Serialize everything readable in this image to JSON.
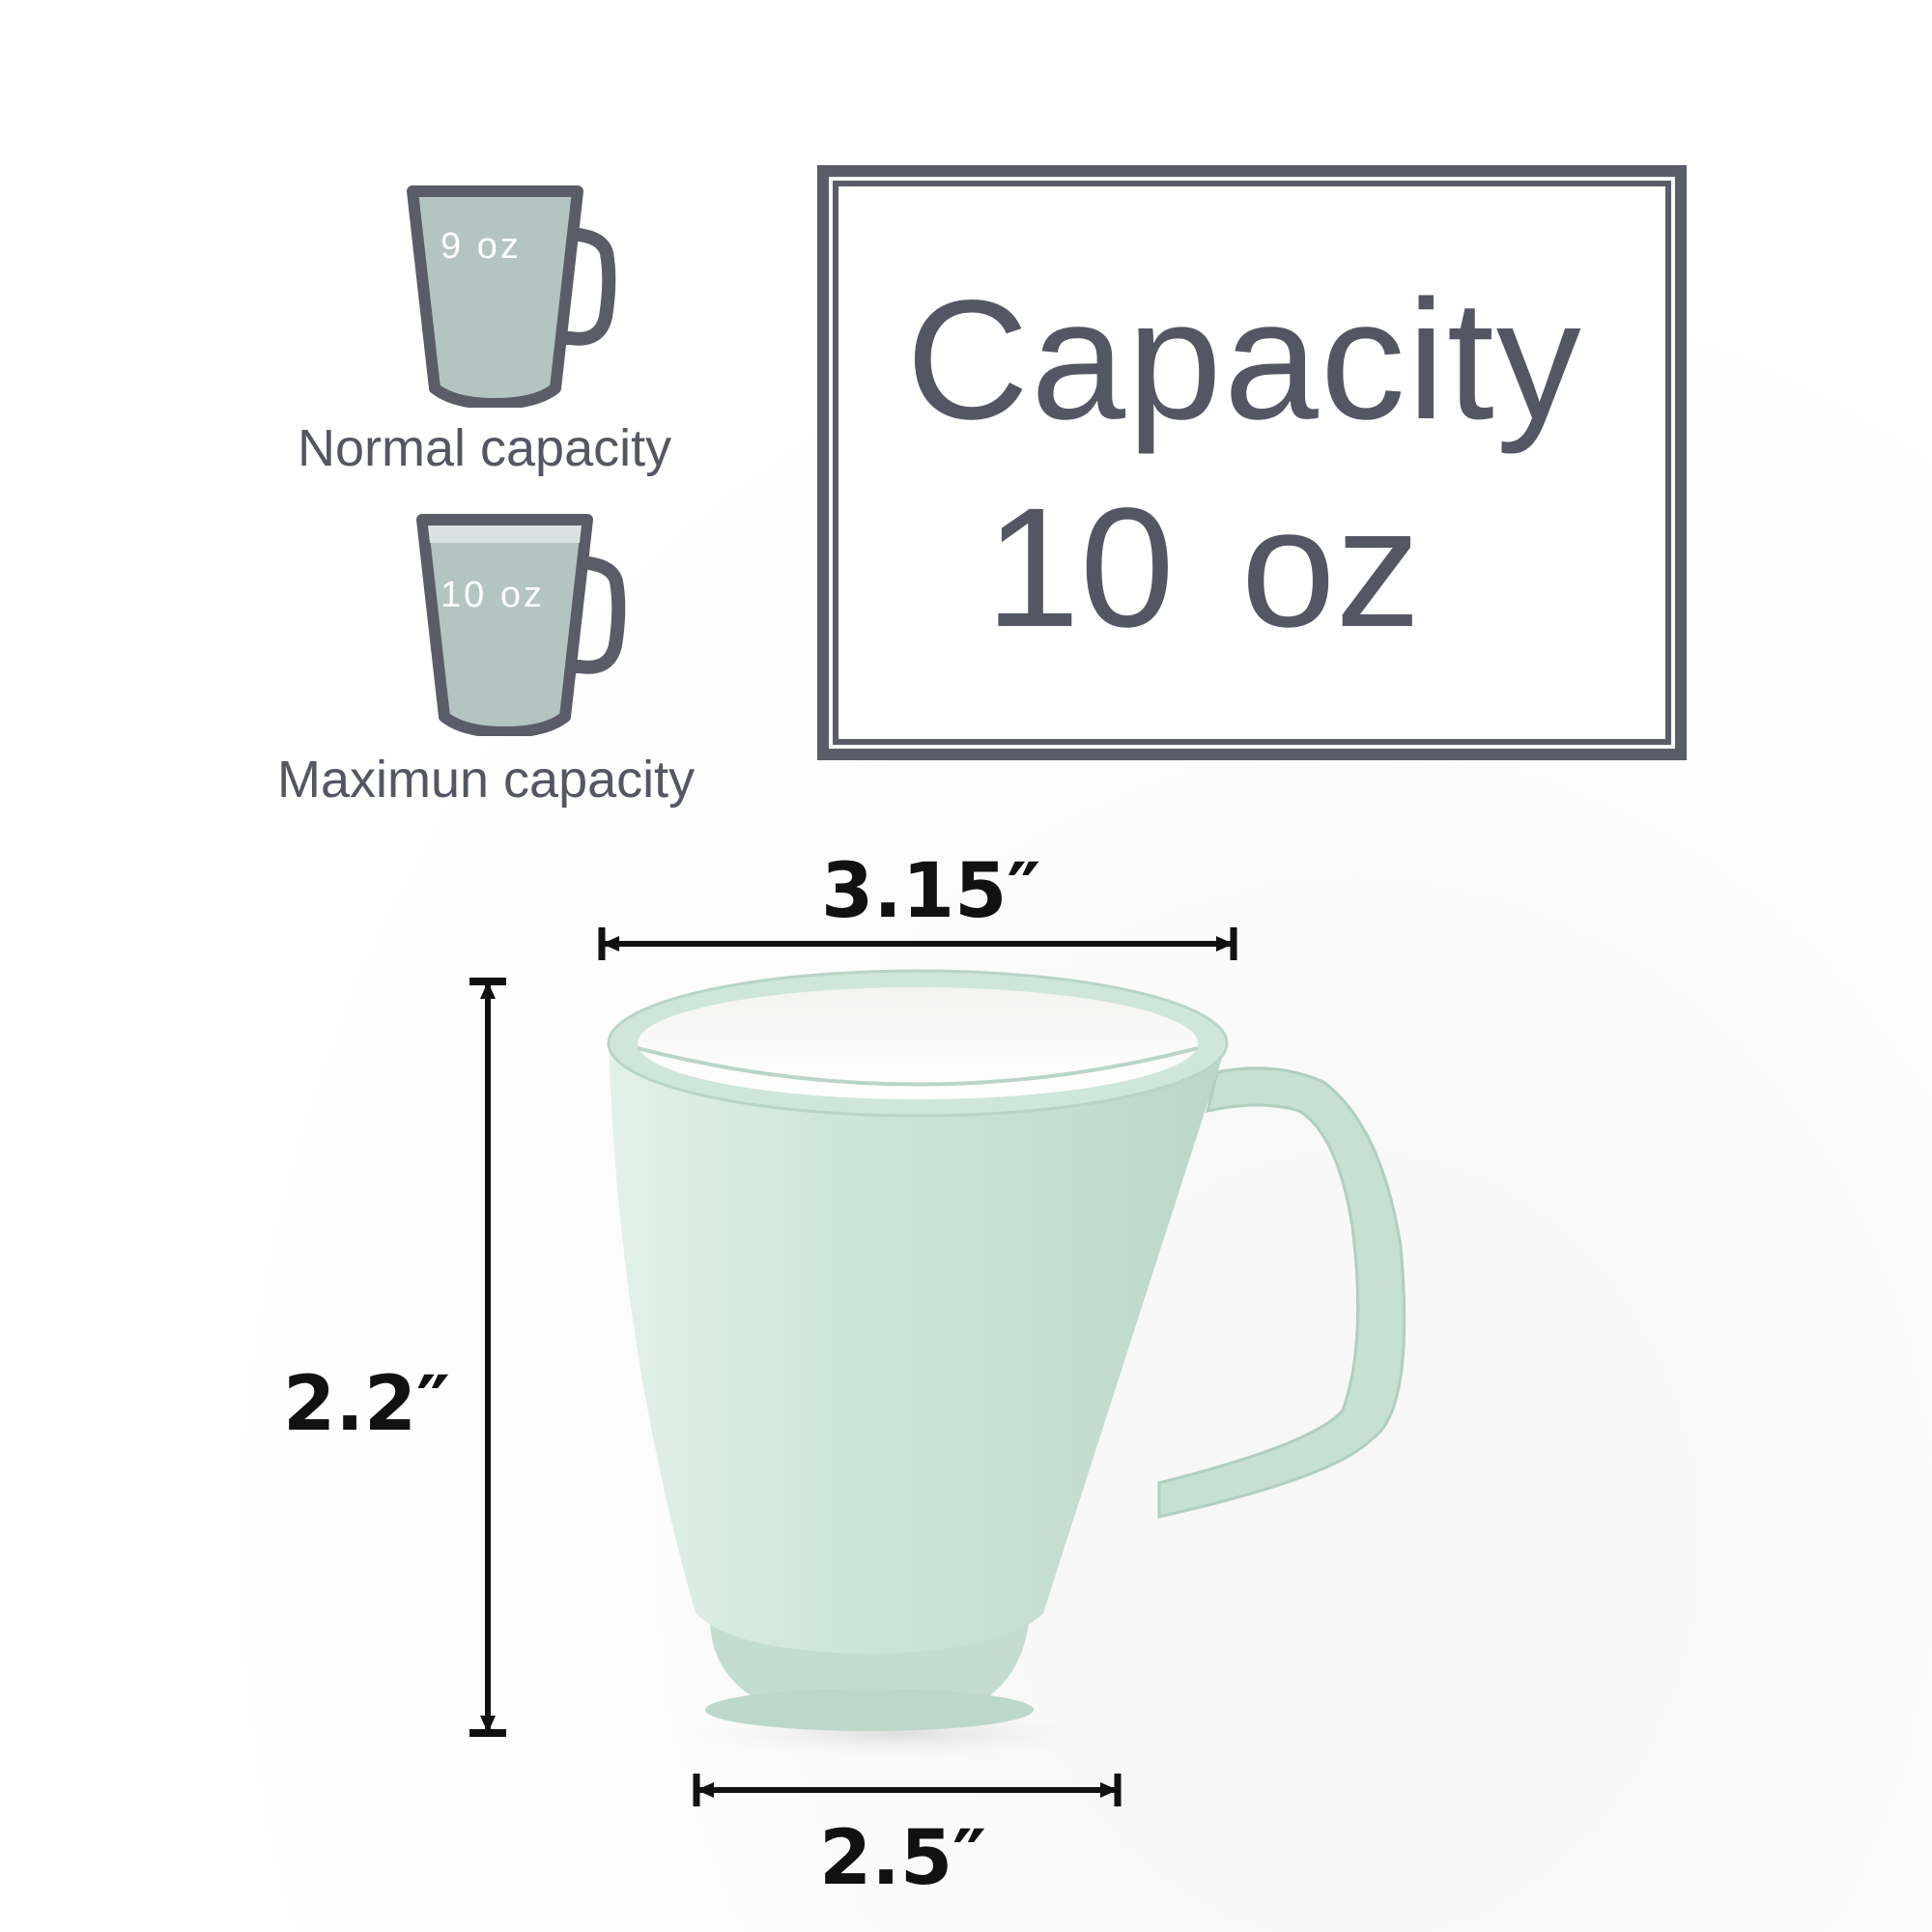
{
  "capacity_box": {
    "title": "Capacity",
    "value": "10 oz"
  },
  "normal_mug": {
    "fill_label": "9 oz",
    "caption": "Normal capacity"
  },
  "max_mug": {
    "fill_label": "10 oz",
    "caption": "Maximun capacity"
  },
  "dimensions": {
    "top_width": "3.15″",
    "height": "2.2″",
    "bottom_width": "2.5″"
  },
  "colors": {
    "icon_outline": "#5a5d68",
    "icon_fill": "#b3c4c1",
    "mug_body": "#cfe6db",
    "text_dark": "#545763"
  }
}
